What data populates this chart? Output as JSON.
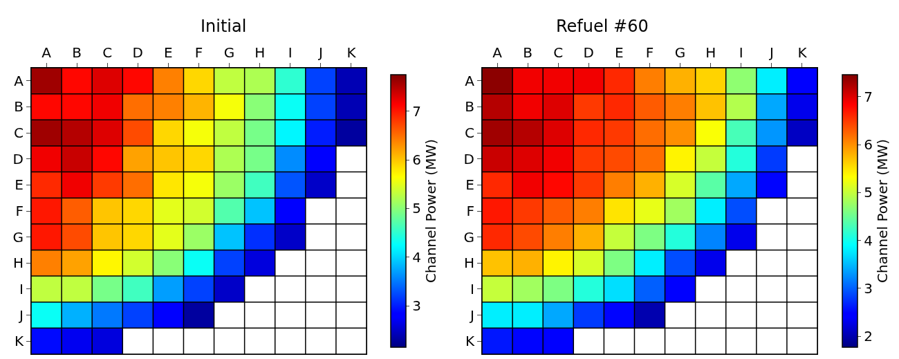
{
  "chart_data": [
    {
      "type": "heatmap",
      "title": "Initial",
      "clabel": "Channel Power (MW)",
      "grid": true,
      "clim": [
        2.15,
        7.75
      ],
      "cticks": [
        3,
        4,
        5,
        6,
        7
      ],
      "categories": [
        "A",
        "B",
        "C",
        "D",
        "E",
        "F",
        "G",
        "H",
        "I",
        "J",
        "K"
      ],
      "y_categories": [
        "A",
        "B",
        "C",
        "D",
        "E",
        "F",
        "G",
        "H",
        "I",
        "J",
        "K"
      ],
      "cells": [
        [
          7.6,
          7.1,
          7.3,
          7.1,
          6.4,
          5.9,
          5.3,
          5.2,
          4.5,
          3.2,
          2.4
        ],
        [
          7.1,
          7.1,
          7.2,
          6.5,
          6.4,
          6.1,
          5.6,
          5.0,
          4.3,
          3.2,
          2.4
        ],
        [
          7.6,
          7.5,
          7.3,
          6.7,
          5.9,
          5.6,
          5.3,
          4.9,
          4.2,
          3.0,
          2.3
        ],
        [
          7.2,
          7.4,
          7.1,
          6.2,
          6.0,
          5.9,
          5.2,
          4.9,
          3.6,
          2.8,
          null
        ],
        [
          6.9,
          7.2,
          6.8,
          6.5,
          5.8,
          5.6,
          5.1,
          4.6,
          3.3,
          2.5,
          null
        ],
        [
          7.0,
          6.6,
          6.0,
          5.9,
          5.5,
          5.4,
          4.7,
          3.9,
          2.8,
          null,
          null
        ],
        [
          7.0,
          6.7,
          6.0,
          5.9,
          5.5,
          5.1,
          3.9,
          3.1,
          2.5,
          null,
          null
        ],
        [
          6.4,
          6.2,
          5.7,
          5.4,
          5.0,
          4.3,
          3.2,
          2.6,
          null,
          null,
          null
        ],
        [
          5.3,
          5.3,
          4.9,
          4.6,
          3.7,
          3.2,
          2.5,
          null,
          null,
          null,
          null
        ],
        [
          4.3,
          3.8,
          3.5,
          3.2,
          2.8,
          2.3,
          null,
          null,
          null,
          null,
          null
        ],
        [
          2.9,
          2.7,
          2.6,
          null,
          null,
          null,
          null,
          null,
          null,
          null,
          null
        ]
      ]
    },
    {
      "type": "heatmap",
      "title": "Refuel #60",
      "clabel": "Channel Power (MW)",
      "grid": true,
      "clim": [
        1.77,
        7.46
      ],
      "cticks": [
        2,
        3,
        4,
        5,
        6,
        7
      ],
      "categories": [
        "A",
        "B",
        "C",
        "D",
        "E",
        "F",
        "G",
        "H",
        "I",
        "J",
        "K"
      ],
      "y_categories": [
        "A",
        "B",
        "C",
        "D",
        "E",
        "F",
        "G",
        "H",
        "I",
        "J",
        "K"
      ],
      "cells": [
        [
          7.4,
          6.9,
          6.9,
          6.9,
          6.6,
          6.1,
          5.8,
          5.6,
          4.7,
          3.8,
          2.4
        ],
        [
          7.2,
          6.9,
          7.0,
          6.5,
          6.6,
          6.3,
          6.1,
          5.7,
          4.9,
          3.4,
          2.3
        ],
        [
          7.3,
          7.2,
          7.0,
          6.6,
          6.5,
          6.2,
          6.0,
          5.3,
          4.3,
          3.3,
          2.1
        ],
        [
          7.1,
          7.0,
          6.9,
          6.5,
          6.4,
          6.2,
          5.4,
          5.0,
          4.1,
          2.8,
          null
        ],
        [
          6.6,
          6.9,
          6.8,
          6.5,
          6.1,
          5.8,
          5.1,
          4.4,
          3.4,
          2.5,
          null
        ],
        [
          6.7,
          6.5,
          6.3,
          6.1,
          5.5,
          5.2,
          4.8,
          3.8,
          2.9,
          null,
          null
        ],
        [
          6.6,
          6.4,
          6.1,
          5.8,
          5.0,
          4.6,
          4.1,
          3.2,
          2.3,
          null,
          null
        ],
        [
          5.7,
          5.8,
          5.4,
          5.1,
          4.6,
          3.8,
          2.9,
          2.3,
          null,
          null,
          null
        ],
        [
          5.0,
          4.8,
          4.6,
          4.1,
          3.7,
          3.0,
          2.4,
          null,
          null,
          null,
          null
        ],
        [
          3.8,
          3.8,
          3.4,
          2.8,
          2.5,
          2.0,
          null,
          null,
          null,
          null,
          null
        ],
        [
          2.6,
          2.5,
          2.4,
          null,
          null,
          null,
          null,
          null,
          null,
          null,
          null
        ]
      ]
    }
  ]
}
